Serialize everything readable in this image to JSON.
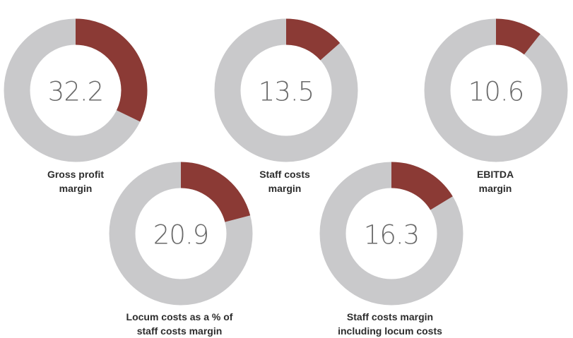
{
  "colors": {
    "accent": "#8b3a35",
    "track": "#c9c9cb",
    "text": "#2d2d2d"
  },
  "chart_data": [
    {
      "type": "pie",
      "title": "",
      "label_lines": [
        "Gross profit",
        "margin"
      ],
      "value": 32.2,
      "value_text": "32.2"
    },
    {
      "type": "pie",
      "title": "",
      "label_lines": [
        "Staff costs",
        "margin"
      ],
      "value": 13.5,
      "value_text": "13.5"
    },
    {
      "type": "pie",
      "title": "",
      "label_lines": [
        "EBITDA",
        "margin"
      ],
      "value": 10.6,
      "value_text": "10.6"
    },
    {
      "type": "pie",
      "title": "",
      "label_lines": [
        "Locum costs as a % of",
        "staff costs margin"
      ],
      "value": 20.9,
      "value_text": "20.9"
    },
    {
      "type": "pie",
      "title": "",
      "label_lines": [
        "Staff costs margin",
        "including locum costs"
      ],
      "value": 16.3,
      "value_text": "16.3"
    }
  ]
}
